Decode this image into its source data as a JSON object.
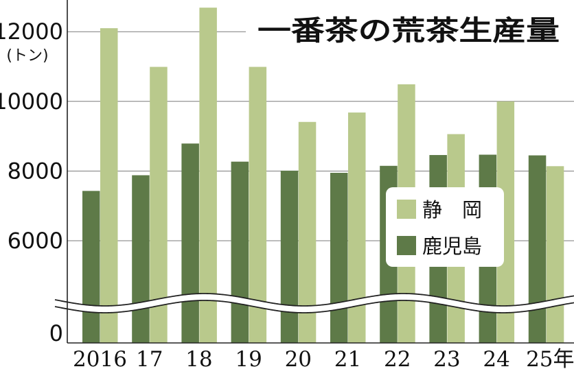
{
  "chart_data": {
    "type": "bar",
    "title": "一番茶の荒茶生産量",
    "ylabel": "(トン)",
    "yticks": [
      "12000",
      "10000",
      "8000",
      "6000",
      "0"
    ],
    "ylim": [
      0,
      12800
    ],
    "axis_break": "between 0 and 6000",
    "grid": true,
    "legend_position": "right",
    "categories": [
      "2016",
      "17",
      "18",
      "19",
      "20",
      "21",
      "22",
      "23",
      "24",
      "25年"
    ],
    "series": [
      {
        "name": "静　岡",
        "color": "#b9c98c",
        "values": [
          12100,
          10990,
          12690,
          10990,
          9410,
          9680,
          10490,
          9060,
          10000,
          8140
        ]
      },
      {
        "name": "鹿児島",
        "color": "#5e7a48",
        "values": [
          7430,
          7880,
          8790,
          8270,
          8010,
          7950,
          8150,
          8460,
          8470,
          8450
        ]
      }
    ]
  }
}
